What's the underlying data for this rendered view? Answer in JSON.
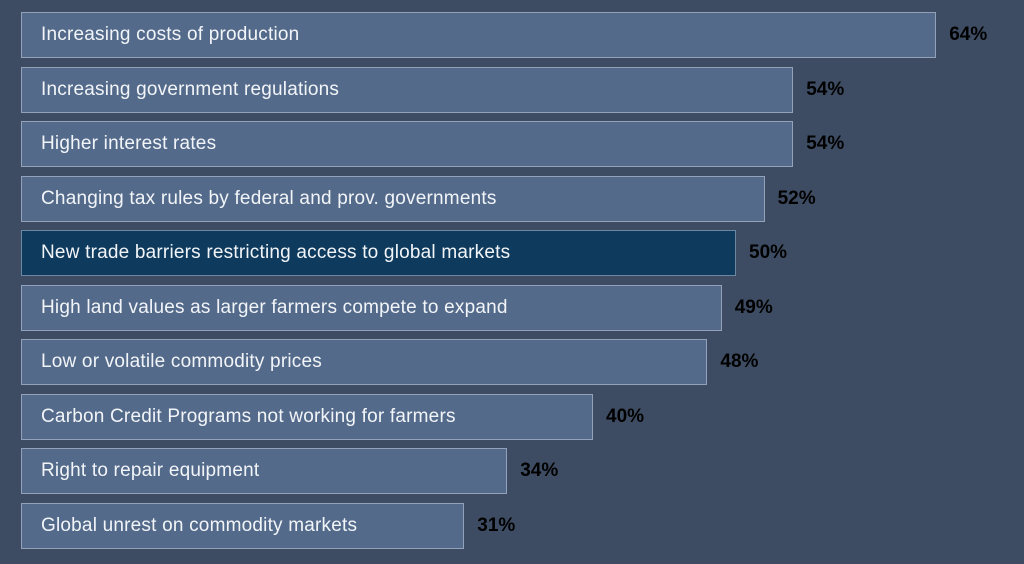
{
  "colors": {
    "background": "#3D4C62",
    "bar_fill": "#546A8B",
    "bar_highlight_fill": "#0E3A5D",
    "bar_border": "rgba(223,231,240,0.45)",
    "bar_label_text": "#F2F5F8",
    "value_label_text": "#000000"
  },
  "chart_data": {
    "type": "bar",
    "orientation": "horizontal",
    "title": "",
    "xlabel": "",
    "ylabel": "",
    "value_suffix": "%",
    "xlim": [
      0,
      64
    ],
    "grid": false,
    "legend": false,
    "categories": [
      "Increasing costs of production",
      "Increasing government regulations",
      "Higher interest rates",
      "Changing tax rules by federal and prov. governments",
      "New trade barriers restricting access to global markets",
      "High land values as larger farmers compete to expand",
      "Low or volatile commodity prices",
      "Carbon Credit Programs not working for farmers",
      "Right to repair equipment",
      "Global unrest on commodity markets"
    ],
    "values": [
      64,
      54,
      54,
      52,
      50,
      49,
      48,
      40,
      34,
      31
    ],
    "value_labels": [
      "64%",
      "54%",
      "54%",
      "52%",
      "50%",
      "49%",
      "48%",
      "40%",
      "34%",
      "31%"
    ],
    "highlighted_index": 4,
    "highlighted_category": "New trade barriers restricting access to global markets"
  }
}
